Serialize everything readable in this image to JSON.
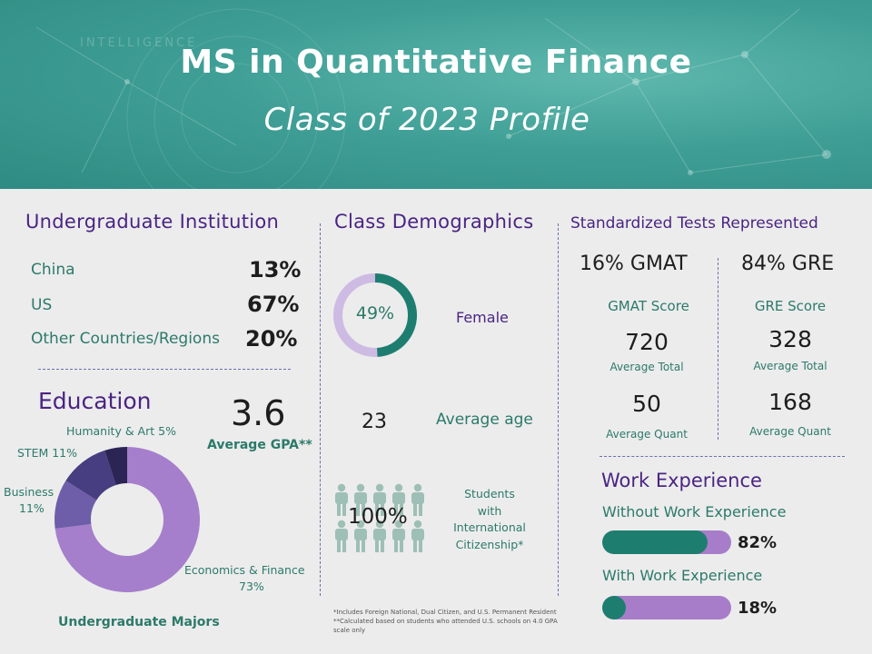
{
  "header": {
    "title": "MS in Quantitative Finance",
    "subtitle": "Class of 2023 Profile",
    "background_text": "INTELLIGENCE"
  },
  "undergrad_institution": {
    "heading": "Undergraduate Institution",
    "rows": [
      {
        "label": "China",
        "value": "13%"
      },
      {
        "label": "US",
        "value": "67%"
      },
      {
        "label": "Other Countries/Regions",
        "value": "20%"
      }
    ]
  },
  "education": {
    "heading": "Education",
    "gpa_value": "3.6",
    "gpa_label": "Average GPA**",
    "majors_caption": "Undergraduate Majors",
    "labels": {
      "humanity": "Humanity & Art 5%",
      "stem": "STEM 11%",
      "business_name": "Business",
      "business_pct": "11%",
      "econ_name": "Economics & Finance",
      "econ_pct": "73%"
    }
  },
  "chart_data": {
    "type": "pie",
    "categories": [
      "Economics & Finance",
      "Business",
      "STEM",
      "Humanity & Art"
    ],
    "values": [
      73,
      11,
      11,
      5
    ],
    "colors": [
      "#a57fcb",
      "#6e5ea9",
      "#463e80",
      "#2a2554"
    ],
    "donut": true
  },
  "demographics": {
    "heading": "Class Demographics",
    "female_pct_text": "49%",
    "female_fraction": 0.49,
    "female_label": "Female",
    "age_value": "23",
    "age_label": "Average age",
    "intl_value": "100%",
    "intl_label_lines": [
      "Students",
      "with",
      "International",
      "Citizenship*"
    ],
    "footnotes": [
      "*Includes Foreign National, Dual Citizen, and U.S. Permanent Resident",
      "**Calculated based on students who attended U.S. schools on 4.0 GPA",
      "scale only"
    ],
    "ring_colors": {
      "fill": "#1d7e70",
      "track": "#cdbbe3"
    }
  },
  "tests": {
    "heading": "Standardized Tests Represented",
    "gmat_pct": "16% GMAT",
    "gre_pct": "84% GRE",
    "gmat": {
      "title": "GMAT Score",
      "total": "720",
      "total_label": "Average Total",
      "quant": "50",
      "quant_label": "Average Quant"
    },
    "gre": {
      "title": "GRE Score",
      "total": "328",
      "total_label": "Average Total",
      "quant": "168",
      "quant_label": "Average Quant"
    }
  },
  "work": {
    "heading": "Work Experience",
    "without_label": "Without Work Experience",
    "without_pct": "82%",
    "without_fraction": 0.82,
    "with_label": "With Work Experience",
    "with_pct": "18%",
    "with_fraction": 0.18
  }
}
